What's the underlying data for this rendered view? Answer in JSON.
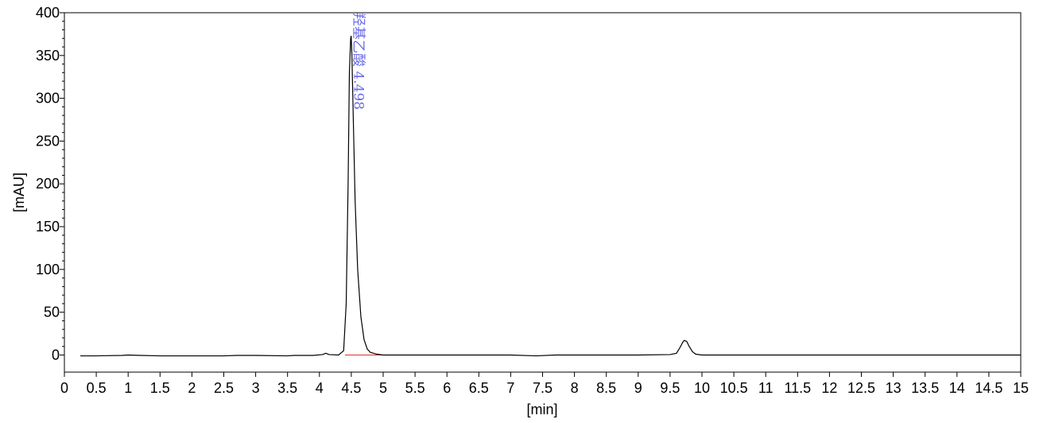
{
  "chart_data": {
    "type": "line",
    "x_label": "[min]",
    "y_label": "[mAU]",
    "x": [
      0.25,
      0.5,
      0.9,
      1.0,
      1.2,
      1.5,
      2.0,
      2.5,
      2.7,
      3.0,
      3.5,
      3.6,
      3.9,
      4.05,
      4.1,
      4.15,
      4.3,
      4.38,
      4.42,
      4.45,
      4.47,
      4.49,
      4.498,
      4.51,
      4.53,
      4.56,
      4.6,
      4.65,
      4.7,
      4.75,
      4.8,
      4.9,
      5.0,
      5.5,
      6.0,
      7.0,
      7.4,
      7.7,
      8.0,
      9.0,
      9.5,
      9.6,
      9.65,
      9.7,
      9.72,
      9.76,
      9.8,
      9.85,
      9.9,
      10.0,
      11,
      12,
      13,
      14,
      15
    ],
    "values": [
      -1,
      -1,
      -0.5,
      0,
      -0.5,
      -1,
      -1,
      -1,
      -0.5,
      -0.5,
      -1,
      -0.5,
      -0.5,
      0.5,
      2,
      0.5,
      0,
      5,
      60,
      200,
      330,
      370,
      373,
      350,
      280,
      180,
      100,
      45,
      18,
      7,
      3,
      1,
      0,
      0,
      0,
      0,
      -1,
      0,
      0,
      0,
      0.5,
      2,
      8,
      15,
      17,
      16,
      10,
      4,
      1,
      0,
      0,
      0,
      0,
      0,
      0
    ],
    "color": "#000000",
    "baseline": {
      "x": [
        4.4,
        5.15
      ],
      "values": [
        0,
        0
      ],
      "color": "#e03030"
    },
    "annotation": {
      "text": "羟基乙酸 4.498",
      "x": 4.498,
      "color": "#6a6ae8"
    },
    "xlim": [
      0,
      15
    ],
    "ylim": [
      -20,
      400
    ],
    "xticks": [
      0,
      0.5,
      1,
      1.5,
      2,
      2.5,
      3,
      3.5,
      4,
      4.5,
      5,
      5.5,
      6,
      6.5,
      7,
      7.5,
      8,
      8.5,
      9,
      9.5,
      10,
      10.5,
      11,
      11.5,
      12,
      12.5,
      13,
      13.5,
      14,
      14.5,
      15
    ],
    "yticks": [
      0,
      50,
      100,
      150,
      200,
      250,
      300,
      350,
      400
    ]
  }
}
